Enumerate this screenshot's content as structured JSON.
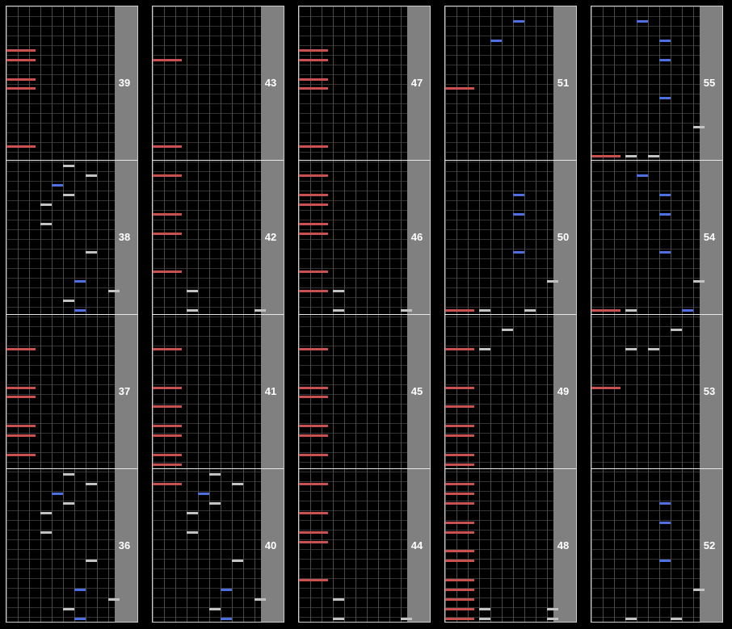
{
  "colors": {
    "red": "#c9524f",
    "blue": "#4e6fe0",
    "gray": "#c3c3c3",
    "strip": "#808080"
  },
  "columns": [
    {
      "measures": [
        {
          "number": "39",
          "notes": [
            [
              "red",
              0,
              4
            ],
            [
              "red",
              0,
              5
            ],
            [
              "red",
              0,
              7
            ],
            [
              "red",
              0,
              8
            ],
            [
              "red",
              0,
              14
            ]
          ]
        },
        {
          "number": "38",
          "notes": [
            [
              "gray",
              5,
              0
            ],
            [
              "gray",
              7,
              1
            ],
            [
              "blue",
              4,
              2
            ],
            [
              "gray",
              5,
              3
            ],
            [
              "gray",
              3,
              4
            ],
            [
              "gray",
              3,
              6
            ],
            [
              "gray",
              7,
              9
            ],
            [
              "blue",
              6,
              12
            ],
            [
              "gray",
              9,
              13
            ],
            [
              "gray",
              5,
              14
            ],
            [
              "blue",
              6,
              15
            ]
          ]
        },
        {
          "number": "37",
          "notes": [
            [
              "red",
              0,
              3
            ],
            [
              "red",
              0,
              7
            ],
            [
              "red",
              0,
              8
            ],
            [
              "red",
              0,
              11
            ],
            [
              "red",
              0,
              12
            ],
            [
              "red",
              0,
              14
            ]
          ]
        },
        {
          "number": "36",
          "notes": [
            [
              "gray",
              5,
              0
            ],
            [
              "gray",
              7,
              1
            ],
            [
              "blue",
              4,
              2
            ],
            [
              "gray",
              5,
              3
            ],
            [
              "gray",
              3,
              4
            ],
            [
              "gray",
              3,
              6
            ],
            [
              "gray",
              7,
              9
            ],
            [
              "blue",
              6,
              12
            ],
            [
              "gray",
              9,
              13
            ],
            [
              "gray",
              5,
              14
            ],
            [
              "blue",
              6,
              15
            ]
          ]
        }
      ]
    },
    {
      "measures": [
        {
          "number": "43",
          "notes": [
            [
              "red",
              0,
              5
            ],
            [
              "red",
              0,
              14
            ]
          ]
        },
        {
          "number": "42",
          "notes": [
            [
              "red",
              0,
              1
            ],
            [
              "red",
              0,
              5
            ],
            [
              "red",
              0,
              7
            ],
            [
              "red",
              0,
              11
            ],
            [
              "gray",
              3,
              13
            ],
            [
              "gray",
              3,
              15
            ],
            [
              "gray",
              9,
              15
            ]
          ]
        },
        {
          "number": "41",
          "notes": [
            [
              "red",
              0,
              3
            ],
            [
              "red",
              0,
              7
            ],
            [
              "red",
              0,
              9
            ],
            [
              "red",
              0,
              11
            ],
            [
              "red",
              0,
              12
            ],
            [
              "red",
              0,
              14
            ],
            [
              "red",
              0,
              15
            ]
          ]
        },
        {
          "number": "40",
          "notes": [
            [
              "red",
              0,
              1
            ],
            [
              "gray",
              5,
              0
            ],
            [
              "gray",
              7,
              1
            ],
            [
              "blue",
              4,
              2
            ],
            [
              "gray",
              5,
              3
            ],
            [
              "gray",
              3,
              4
            ],
            [
              "gray",
              3,
              6
            ],
            [
              "gray",
              7,
              9
            ],
            [
              "blue",
              6,
              12
            ],
            [
              "gray",
              9,
              13
            ],
            [
              "gray",
              5,
              14
            ],
            [
              "blue",
              6,
              15
            ]
          ]
        }
      ]
    },
    {
      "measures": [
        {
          "number": "47",
          "notes": [
            [
              "red",
              0,
              4
            ],
            [
              "red",
              0,
              5
            ],
            [
              "red",
              0,
              7
            ],
            [
              "red",
              0,
              8
            ],
            [
              "red",
              0,
              14
            ]
          ]
        },
        {
          "number": "46",
          "notes": [
            [
              "red",
              0,
              1
            ],
            [
              "red",
              0,
              3
            ],
            [
              "red",
              0,
              4
            ],
            [
              "red",
              0,
              6
            ],
            [
              "red",
              0,
              7
            ],
            [
              "red",
              0,
              11
            ],
            [
              "red",
              0,
              13
            ],
            [
              "gray",
              3,
              13
            ],
            [
              "gray",
              3,
              15
            ],
            [
              "gray",
              9,
              15
            ]
          ]
        },
        {
          "number": "45",
          "notes": [
            [
              "red",
              0,
              3
            ],
            [
              "red",
              0,
              7
            ],
            [
              "red",
              0,
              8
            ],
            [
              "red",
              0,
              11
            ],
            [
              "red",
              0,
              12
            ],
            [
              "red",
              0,
              14
            ]
          ]
        },
        {
          "number": "44",
          "notes": [
            [
              "red",
              0,
              1
            ],
            [
              "red",
              0,
              4
            ],
            [
              "red",
              0,
              6
            ],
            [
              "red",
              0,
              7
            ],
            [
              "red",
              0,
              11
            ],
            [
              "gray",
              3,
              13
            ],
            [
              "gray",
              3,
              15
            ],
            [
              "gray",
              9,
              15
            ]
          ]
        }
      ]
    },
    {
      "measures": [
        {
          "number": "51",
          "notes": [
            [
              "blue",
              6,
              1
            ],
            [
              "blue",
              4,
              3
            ],
            [
              "red",
              0,
              8
            ]
          ]
        },
        {
          "number": "50",
          "notes": [
            [
              "blue",
              6,
              3
            ],
            [
              "blue",
              6,
              5
            ],
            [
              "blue",
              6,
              9
            ],
            [
              "gray",
              9,
              12
            ],
            [
              "red",
              0,
              15
            ],
            [
              "gray",
              3,
              15
            ],
            [
              "gray",
              7,
              15
            ]
          ]
        },
        {
          "number": "49",
          "notes": [
            [
              "gray",
              5,
              1
            ],
            [
              "red",
              0,
              3
            ],
            [
              "gray",
              3,
              3
            ],
            [
              "red",
              0,
              7
            ],
            [
              "red",
              0,
              9
            ],
            [
              "red",
              0,
              11
            ],
            [
              "red",
              0,
              12
            ],
            [
              "red",
              0,
              14
            ],
            [
              "red",
              0,
              15
            ]
          ]
        },
        {
          "number": "48",
          "notes": [
            [
              "red",
              0,
              1
            ],
            [
              "red",
              0,
              2
            ],
            [
              "red",
              0,
              3
            ],
            [
              "red",
              0,
              5
            ],
            [
              "red",
              0,
              6
            ],
            [
              "red",
              0,
              8
            ],
            [
              "red",
              0,
              9
            ],
            [
              "red",
              0,
              11
            ],
            [
              "red",
              0,
              12
            ],
            [
              "red",
              0,
              13
            ],
            [
              "red",
              0,
              14
            ],
            [
              "red",
              0,
              15
            ],
            [
              "gray",
              3,
              14
            ],
            [
              "gray",
              9,
              14
            ],
            [
              "gray",
              3,
              15
            ],
            [
              "gray",
              9,
              15
            ]
          ]
        }
      ]
    },
    {
      "measures": [
        {
          "number": "55",
          "notes": [
            [
              "blue",
              4,
              1
            ],
            [
              "blue",
              6,
              3
            ],
            [
              "blue",
              6,
              5
            ],
            [
              "blue",
              6,
              9
            ],
            [
              "gray",
              9,
              12
            ],
            [
              "red",
              0,
              15
            ],
            [
              "gray",
              3,
              15
            ],
            [
              "gray",
              5,
              15
            ]
          ]
        },
        {
          "number": "54",
          "notes": [
            [
              "blue",
              4,
              1
            ],
            [
              "blue",
              6,
              3
            ],
            [
              "blue",
              6,
              5
            ],
            [
              "blue",
              6,
              9
            ],
            [
              "gray",
              9,
              12
            ],
            [
              "red",
              0,
              15
            ],
            [
              "gray",
              3,
              15
            ],
            [
              "blue",
              8,
              15
            ]
          ]
        },
        {
          "number": "53",
          "notes": [
            [
              "gray",
              7,
              1
            ],
            [
              "gray",
              3,
              3
            ],
            [
              "gray",
              5,
              3
            ],
            [
              "red",
              0,
              7
            ]
          ]
        },
        {
          "number": "52",
          "notes": [
            [
              "blue",
              6,
              3
            ],
            [
              "blue",
              6,
              5
            ],
            [
              "blue",
              6,
              9
            ],
            [
              "gray",
              9,
              12
            ],
            [
              "gray",
              3,
              15
            ],
            [
              "gray",
              7,
              15
            ]
          ]
        }
      ]
    }
  ]
}
